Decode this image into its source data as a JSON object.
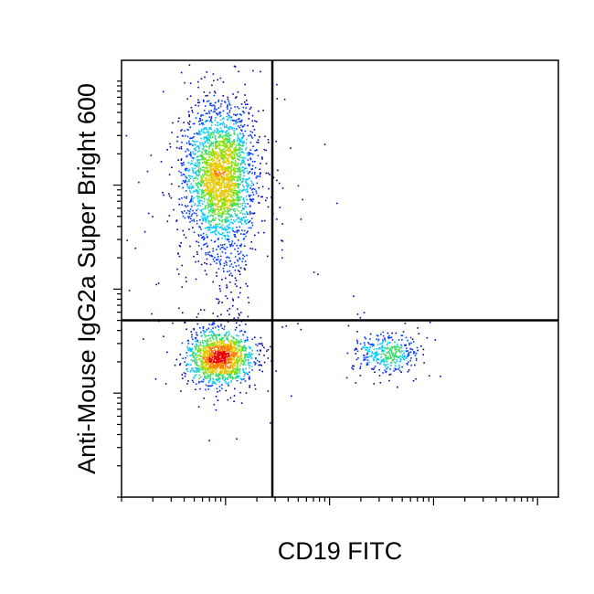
{
  "chart_data": {
    "type": "scatter",
    "plot_style": "flow cytometry density dot plot with quadrant gates",
    "title": "",
    "xlabel": "CD19 FITC",
    "ylabel": "Anti-Mouse IgG2a Super Bright 600",
    "x_scale": "log (biexponential)",
    "y_scale": "log (biexponential)",
    "x_axis": {
      "range_decades": [
        0,
        4.2
      ],
      "major_ticks_decades": [
        1,
        2,
        3,
        4
      ],
      "tick_labels": []
    },
    "y_axis": {
      "range_decades": [
        0,
        4.2
      ],
      "major_ticks_decades": [
        1,
        2,
        3
      ],
      "tick_labels": []
    },
    "gates": {
      "vertical_x_decades": 1.45,
      "horizontal_y_decades": 1.7
    },
    "density_colors": [
      "#00009f",
      "#0039ff",
      "#00c8ff",
      "#33dd66",
      "#88e000",
      "#e6c800",
      "#ff7a00",
      "#e60000"
    ],
    "populations": [
      {
        "quadrant": "upper-left",
        "center_x_decades": 0.95,
        "center_y_decades": 3.1,
        "spread_x": 0.17,
        "spread_y": 0.34,
        "events": 2600
      },
      {
        "quadrant": "lower-left",
        "center_x_decades": 0.95,
        "center_y_decades": 1.35,
        "spread_x": 0.16,
        "spread_y": 0.13,
        "events": 1400
      },
      {
        "quadrant": "lower-right",
        "center_x_decades": 2.55,
        "center_y_decades": 1.38,
        "spread_x": 0.15,
        "spread_y": 0.1,
        "events": 380
      },
      {
        "quadrant": "upper-left",
        "center_x_decades": 1.05,
        "center_y_decades": 2.2,
        "spread_x": 0.12,
        "spread_y": 0.38,
        "events": 120
      }
    ]
  }
}
